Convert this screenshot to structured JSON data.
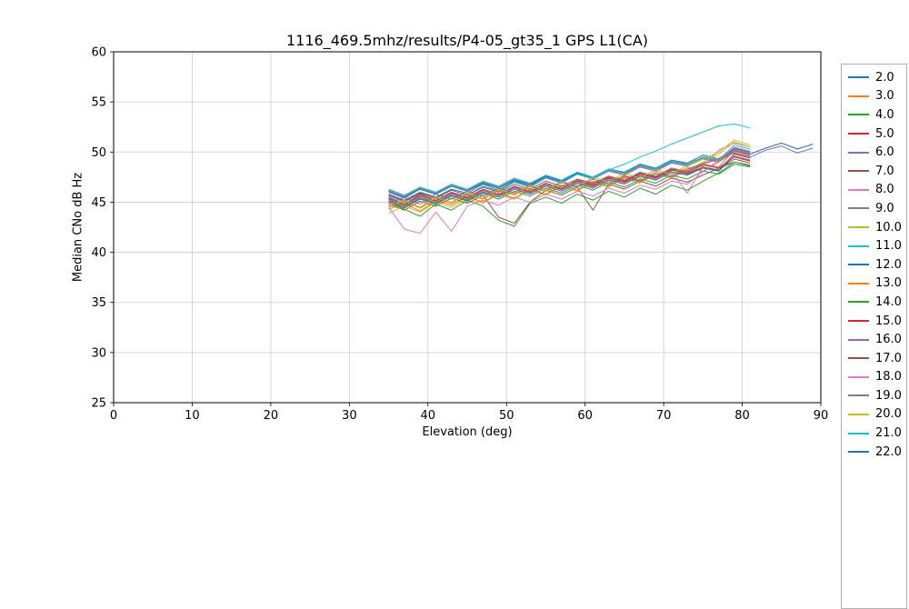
{
  "chart_data": {
    "type": "line",
    "title": "1116_469.5mhz/results/P4-05_gt35_1 GPS L1(CA)",
    "xlabel": "Elevation (deg)",
    "ylabel": "Median CNo dB Hz",
    "xlim": [
      0,
      90
    ],
    "ylim": [
      25,
      60
    ],
    "xticks": [
      0,
      10,
      20,
      30,
      40,
      50,
      60,
      70,
      80,
      90
    ],
    "yticks": [
      25,
      30,
      35,
      40,
      45,
      50,
      55,
      60
    ],
    "grid": true,
    "legend_position": "right",
    "palette": [
      "#1f77b4",
      "#ff7f0e",
      "#2ca02c",
      "#d62728",
      "#9467bd",
      "#8c564b",
      "#e377c2",
      "#7f7f7f",
      "#bcbd22",
      "#17becf"
    ],
    "x": [
      35,
      37,
      39,
      41,
      43,
      45,
      47,
      49,
      51,
      53,
      55,
      57,
      59,
      61,
      63,
      65,
      67,
      69,
      71,
      73,
      75,
      77,
      79,
      81,
      83,
      85,
      87,
      89
    ],
    "series": [
      {
        "name": "2.0",
        "y": [
          45.8,
          45.2,
          46.0,
          45.5,
          46.3,
          45.9,
          46.8,
          46.2,
          47.1,
          46.6,
          47.5,
          47.0,
          47.9,
          47.4,
          48.3,
          48.0,
          48.8,
          48.4,
          49.2,
          48.9,
          49.7,
          49.3,
          50.1,
          49.8,
          50.4,
          50.9,
          50.3,
          50.8
        ]
      },
      {
        "name": "3.0",
        "y": [
          44.3,
          44.9,
          44.1,
          45.2,
          44.7,
          45.6,
          45.0,
          45.9,
          45.4,
          46.3,
          45.8,
          46.7,
          46.2,
          47.1,
          46.6,
          47.5,
          47.0,
          47.9,
          47.4,
          48.3,
          48.9,
          49.4,
          50.2,
          49.8
        ]
      },
      {
        "name": "4.0",
        "y": [
          45.0,
          44.4,
          45.3,
          44.8,
          45.6,
          45.1,
          45.9,
          45.3,
          46.1,
          45.6,
          46.4,
          45.9,
          46.7,
          46.2,
          47.0,
          46.5,
          47.3,
          46.9,
          47.7,
          47.3,
          48.1,
          47.8,
          48.8,
          48.5
        ]
      },
      {
        "name": "5.0",
        "y": [
          45.5,
          44.8,
          45.8,
          45.2,
          46.0,
          45.5,
          46.3,
          45.8,
          46.6,
          46.1,
          46.9,
          46.4,
          47.2,
          46.7,
          47.5,
          47.1,
          47.9,
          47.5,
          48.3,
          48.0,
          48.7,
          48.4,
          49.5,
          49.1
        ]
      },
      {
        "name": "6.0",
        "y": [
          46.0,
          45.4,
          46.3,
          45.8,
          46.6,
          46.1,
          46.9,
          46.4,
          47.2,
          46.7,
          47.5,
          47.0,
          47.8,
          47.3,
          48.1,
          47.7,
          48.5,
          48.1,
          48.9,
          48.6,
          49.3,
          49.0,
          50.3,
          49.9
        ]
      },
      {
        "name": "7.0",
        "y": [
          44.8,
          44.2,
          45.1,
          44.6,
          45.4,
          44.9,
          45.7,
          43.5,
          42.9,
          45.0,
          46.2,
          45.7,
          46.5,
          44.2,
          46.8,
          46.3,
          47.1,
          46.6,
          47.4,
          47.0,
          47.7,
          48.4,
          49.0,
          48.7
        ]
      },
      {
        "name": "8.0",
        "y": [
          45.2,
          44.6,
          45.5,
          45.0,
          45.8,
          45.3,
          46.1,
          45.6,
          46.4,
          45.9,
          46.7,
          46.2,
          47.0,
          46.5,
          47.3,
          46.9,
          47.7,
          47.3,
          48.1,
          45.9,
          48.6,
          50.2,
          50.9,
          50.5
        ]
      },
      {
        "name": "9.0",
        "y": [
          46.2,
          45.6,
          46.4,
          45.9,
          46.7,
          46.2,
          47.0,
          46.5,
          47.3,
          46.8,
          47.6,
          47.1,
          47.9,
          47.4,
          48.2,
          47.8,
          48.6,
          48.2,
          49.0,
          48.7,
          49.4,
          49.1,
          50.1,
          49.7
        ]
      },
      {
        "name": "10.0",
        "y": [
          43.9,
          44.6,
          44.0,
          45.0,
          44.5,
          45.4,
          44.9,
          45.8,
          45.3,
          46.2,
          45.7,
          46.6,
          46.1,
          47.0,
          46.5,
          47.4,
          46.9,
          47.8,
          47.4,
          48.2,
          49.0,
          49.8,
          51.0,
          50.5
        ]
      },
      {
        "name": "11.0",
        "y": [
          45.6,
          45.0,
          45.9,
          45.4,
          46.2,
          45.7,
          46.6,
          46.1,
          47.0,
          46.5,
          47.4,
          46.9,
          47.8,
          47.4,
          48.2,
          48.8,
          49.5,
          50.1,
          50.8,
          51.4,
          52.0,
          52.6,
          52.8,
          52.4
        ]
      },
      {
        "name": "12.0",
        "y": [
          46.1,
          45.5,
          46.3,
          45.8,
          46.6,
          46.1,
          46.9,
          46.4,
          47.2,
          46.8,
          47.6,
          47.1,
          47.9,
          47.5,
          48.3,
          47.9,
          48.7,
          48.3,
          49.1,
          48.8,
          49.5,
          49.2,
          50.4,
          50.0
        ]
      },
      {
        "name": "13.0",
        "y": [
          44.5,
          45.1,
          44.4,
          45.4,
          44.9,
          45.8,
          45.3,
          46.2,
          45.7,
          46.6,
          46.1,
          47.0,
          46.5,
          47.3,
          46.8,
          47.7,
          47.2,
          48.1,
          47.6,
          48.5,
          48.1,
          49.0,
          50.0,
          49.6
        ]
      },
      {
        "name": "14.0",
        "y": [
          45.0,
          44.3,
          43.6,
          44.8,
          44.2,
          45.2,
          44.6,
          43.2,
          42.6,
          44.9,
          45.5,
          44.9,
          45.8,
          45.2,
          46.1,
          45.5,
          46.4,
          45.8,
          46.7,
          46.2,
          47.1,
          47.9,
          49.0,
          48.6
        ]
      },
      {
        "name": "15.0",
        "y": [
          45.3,
          44.7,
          45.6,
          45.1,
          45.9,
          45.4,
          46.2,
          45.7,
          46.5,
          46.0,
          46.8,
          46.3,
          47.1,
          46.6,
          47.4,
          47.0,
          47.8,
          47.4,
          48.2,
          47.8,
          48.5,
          48.2,
          49.8,
          49.4
        ]
      },
      {
        "name": "16.0",
        "y": [
          44.9,
          45.5,
          44.8,
          45.8,
          45.3,
          46.1,
          45.6,
          46.4,
          45.9,
          46.7,
          46.2,
          47.0,
          46.5,
          47.3,
          46.8,
          47.6,
          47.1,
          47.9,
          47.5,
          48.3,
          48.8,
          49.3,
          49.9,
          49.5,
          50.2,
          50.6,
          49.9,
          50.4
        ]
      },
      {
        "name": "17.0",
        "y": [
          45.7,
          45.1,
          45.9,
          45.4,
          46.2,
          45.7,
          46.5,
          46.0,
          46.8,
          46.3,
          47.1,
          46.6,
          47.3,
          46.9,
          47.6,
          47.2,
          47.9,
          47.5,
          48.2,
          47.9,
          48.5,
          48.2,
          49.3,
          48.9
        ]
      },
      {
        "name": "18.0",
        "y": [
          44.5,
          42.3,
          41.9,
          44.0,
          42.1,
          44.6,
          45.2,
          44.7,
          45.5,
          45.0,
          45.8,
          45.3,
          46.1,
          45.6,
          46.4,
          45.9,
          46.7,
          46.3,
          47.1,
          46.8,
          48.0,
          49.2,
          50.5,
          50.1
        ]
      },
      {
        "name": "19.0",
        "y": [
          45.4,
          44.8,
          45.7,
          45.2,
          46.0,
          45.5,
          46.3,
          45.8,
          46.6,
          46.1,
          46.9,
          46.4,
          47.2,
          46.8,
          47.6,
          47.2,
          48.0,
          47.6,
          48.4,
          48.1,
          48.8,
          48.5,
          50.2,
          49.8
        ]
      },
      {
        "name": "20.0",
        "y": [
          44.6,
          45.2,
          44.5,
          45.5,
          45.0,
          45.9,
          45.4,
          46.3,
          45.8,
          46.7,
          46.2,
          47.1,
          46.6,
          47.5,
          47.0,
          47.9,
          47.4,
          48.3,
          47.8,
          48.7,
          49.3,
          50.0,
          51.2,
          50.7
        ]
      },
      {
        "name": "21.0",
        "y": [
          46.3,
          45.7,
          46.5,
          46.0,
          46.8,
          46.3,
          47.1,
          46.6,
          47.4,
          46.9,
          47.7,
          47.2,
          48.0,
          47.5,
          48.3,
          47.9,
          48.7,
          48.3,
          49.1,
          48.8,
          49.5,
          49.2,
          50.7,
          50.3
        ]
      },
      {
        "name": "22.0",
        "y": [
          45.1,
          44.5,
          45.4,
          44.9,
          45.7,
          45.2,
          46.0,
          45.5,
          46.3,
          45.8,
          46.6,
          46.1,
          46.9,
          46.4,
          47.2,
          46.8,
          47.6,
          47.2,
          48.0,
          47.7,
          48.4,
          48.1,
          49.6,
          49.2
        ]
      }
    ]
  }
}
